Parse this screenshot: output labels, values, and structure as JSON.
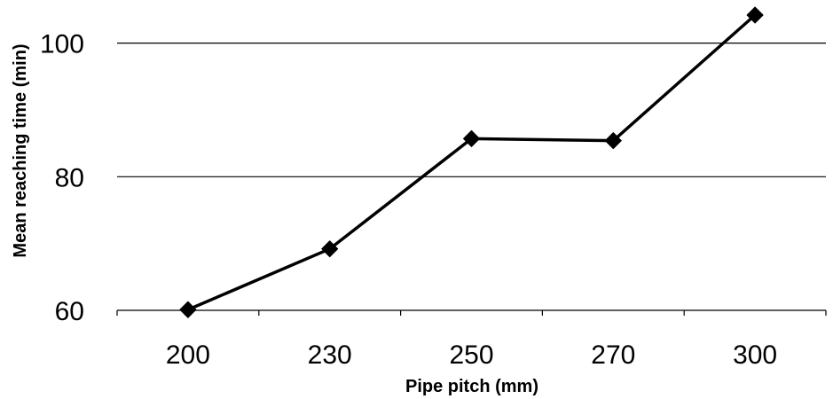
{
  "chart_data": {
    "type": "line",
    "categories": [
      "200",
      "230",
      "250",
      "270",
      "300"
    ],
    "series": [
      {
        "values": [
          60.1,
          69.2,
          85.7,
          85.4,
          104.2
        ]
      }
    ],
    "xlabel": "Pipe pitch (mm)",
    "ylabel": "Mean reaching time (min)",
    "ylim": [
      60,
      104.2
    ],
    "yticks": [
      60,
      80,
      100
    ],
    "grid": true,
    "legend": "none",
    "colors": {
      "line": "#000000",
      "marker": "#000000",
      "grid": "#000000"
    }
  }
}
